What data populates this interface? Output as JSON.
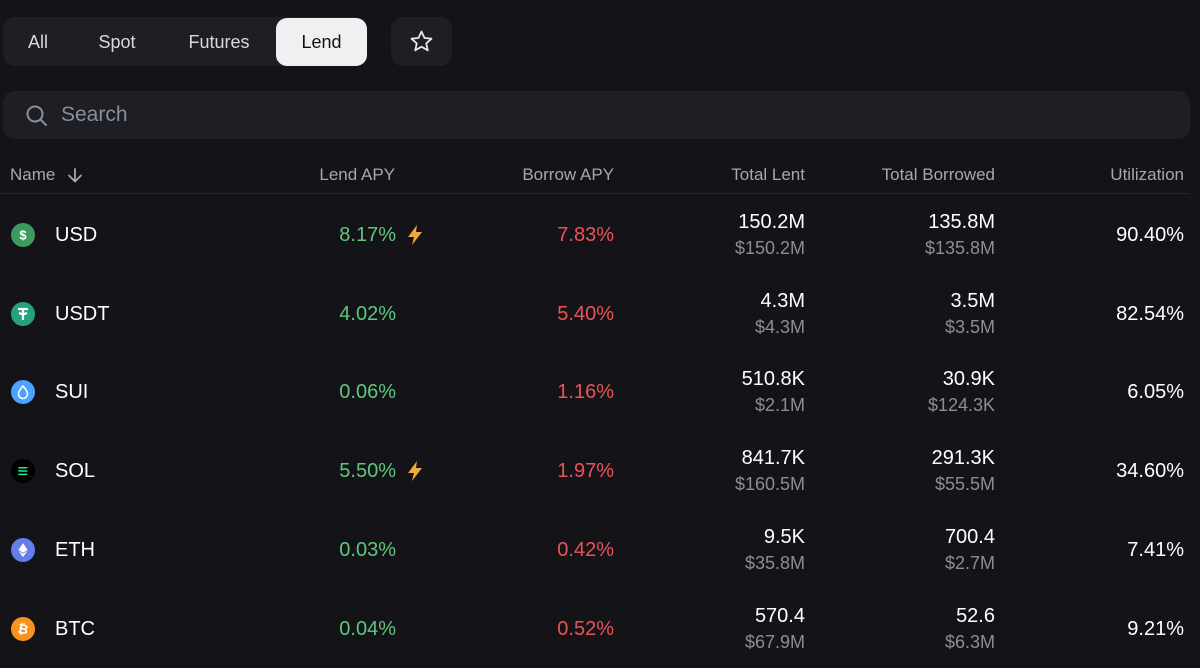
{
  "tabs": {
    "items": [
      "All",
      "Spot",
      "Futures",
      "Lend"
    ],
    "active": 3
  },
  "search": {
    "placeholder": "Search"
  },
  "table": {
    "columns": [
      "Name",
      "Lend APY",
      "Borrow APY",
      "Total Lent",
      "Total Borrowed",
      "Utilization"
    ],
    "rows": [
      {
        "name": "USD",
        "icon_color": "#3d9a5e",
        "lend_apy": "8.17%",
        "boosted": true,
        "borrow_apy": "7.83%",
        "total_lent": "150.2M",
        "total_lent_usd": "$150.2M",
        "total_borrowed": "135.8M",
        "total_borrowed_usd": "$135.8M",
        "utilization": "90.40%"
      },
      {
        "name": "USDT",
        "icon_color": "#26a17b",
        "lend_apy": "4.02%",
        "boosted": false,
        "borrow_apy": "5.40%",
        "total_lent": "4.3M",
        "total_lent_usd": "$4.3M",
        "total_borrowed": "3.5M",
        "total_borrowed_usd": "$3.5M",
        "utilization": "82.54%"
      },
      {
        "name": "SUI",
        "icon_color": "#4da2ff",
        "lend_apy": "0.06%",
        "boosted": false,
        "borrow_apy": "1.16%",
        "total_lent": "510.8K",
        "total_lent_usd": "$2.1M",
        "total_borrowed": "30.9K",
        "total_borrowed_usd": "$124.3K",
        "utilization": "6.05%"
      },
      {
        "name": "SOL",
        "icon_color": "#000000",
        "lend_apy": "5.50%",
        "boosted": true,
        "borrow_apy": "1.97%",
        "total_lent": "841.7K",
        "total_lent_usd": "$160.5M",
        "total_borrowed": "291.3K",
        "total_borrowed_usd": "$55.5M",
        "utilization": "34.60%"
      },
      {
        "name": "ETH",
        "icon_color": "#627eea",
        "lend_apy": "0.03%",
        "boosted": false,
        "borrow_apy": "0.42%",
        "total_lent": "9.5K",
        "total_lent_usd": "$35.8M",
        "total_borrowed": "700.4",
        "total_borrowed_usd": "$2.7M",
        "utilization": "7.41%"
      },
      {
        "name": "BTC",
        "icon_color": "#f7931a",
        "lend_apy": "0.04%",
        "boosted": false,
        "borrow_apy": "0.52%",
        "total_lent": "570.4",
        "total_lent_usd": "$67.9M",
        "total_borrowed": "52.6",
        "total_borrowed_usd": "$6.3M",
        "utilization": "9.21%"
      }
    ]
  }
}
